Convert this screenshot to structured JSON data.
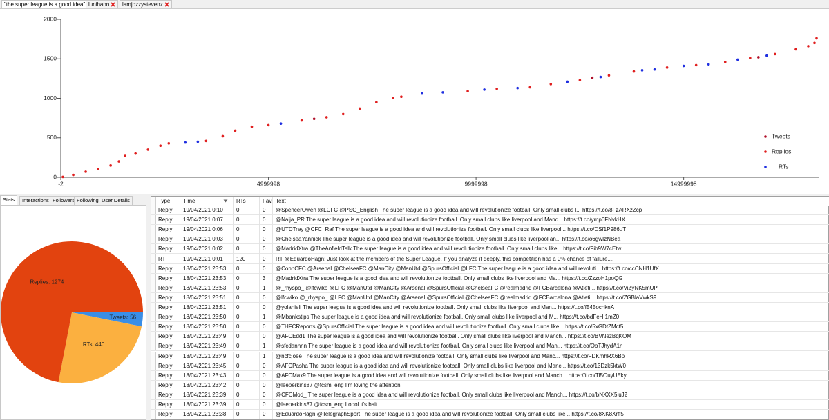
{
  "window_tabs": [
    "\"the super league is a good idea\"",
    "lunihann",
    "lamjozzystevenz"
  ],
  "chart_data": [
    {
      "type": "scatter",
      "xlim": [
        -2,
        18250000
      ],
      "ylim": [
        0,
        2000
      ],
      "xticks": [
        -2,
        4999998,
        9999998,
        14999998
      ],
      "yticks": [
        0,
        500,
        1000,
        1500,
        2000
      ],
      "legend": "right",
      "series": [
        {
          "name": "Tweets",
          "color": "#b0102a",
          "x": [
            6100000,
            12800000,
            16800000
          ],
          "values": [
            740,
            1260,
            1520
          ]
        },
        {
          "name": "Replies",
          "color": "#e01f1f",
          "x": [
            50000,
            300000,
            600000,
            900000,
            1200000,
            1400000,
            1550000,
            1800000,
            2100000,
            2400000,
            2600000,
            3500000,
            3900000,
            4200000,
            4600000,
            5000000,
            5800000,
            6400000,
            6800000,
            7200000,
            7600000,
            8000000,
            8200000,
            9800000,
            10500000,
            11300000,
            11800000,
            12500000,
            13200000,
            13800000,
            14600000,
            15300000,
            16000000,
            16600000,
            17200000,
            17700000,
            18000000,
            18150000,
            18200000
          ],
          "values": [
            5,
            30,
            70,
            105,
            150,
            200,
            270,
            300,
            350,
            400,
            430,
            460,
            520,
            590,
            640,
            660,
            720,
            760,
            800,
            870,
            950,
            1005,
            1020,
            1090,
            1120,
            1140,
            1180,
            1230,
            1290,
            1340,
            1390,
            1420,
            1460,
            1510,
            1560,
            1620,
            1660,
            1700,
            1760
          ]
        },
        {
          "name": "RTs",
          "color": "#1f2fe0",
          "x": [
            3000000,
            3300000,
            5300000,
            8700000,
            9200000,
            10200000,
            11000000,
            12200000,
            13000000,
            14000000,
            14300000,
            15000000,
            15600000,
            16300000,
            17000000
          ],
          "values": [
            440,
            450,
            680,
            1060,
            1075,
            1110,
            1130,
            1210,
            1270,
            1355,
            1365,
            1410,
            1430,
            1490,
            1540
          ]
        }
      ]
    },
    {
      "type": "pie",
      "categories": [
        "Tweets",
        "RTs",
        "Replies"
      ],
      "values": [
        56,
        440,
        1274
      ],
      "value_labels": [
        "Tweets: 56",
        "RTs: 440",
        "Replies: 1274"
      ],
      "colors": [
        "#3a8ee6",
        "#fbb040",
        "#e2430f"
      ]
    }
  ],
  "side_tabs": [
    "Stats",
    "Interactions",
    "Followers",
    "Following",
    "User Details"
  ],
  "table": {
    "columns": [
      "Type",
      "Time",
      "RTs",
      "Favs",
      "Text"
    ],
    "rows": [
      [
        "Reply",
        "19/04/2021 0:10",
        0,
        0,
        "@SpencerOwen @LCFC @PSG_English The super league is a good idea and will revolutionize football. Only small clubs l... https://t.co/8FzARXzZcp"
      ],
      [
        "Reply",
        "19/04/2021 0:07",
        0,
        0,
        "@Naija_PR The super league is a good idea and will revolutionize football. Only small clubs like liverpool and Manc... https://t.co/ymp6FNvkHX"
      ],
      [
        "Reply",
        "19/04/2021 0:06",
        0,
        0,
        "@UTDTrey @CFC_Raf The super league is a good idea and will revolutionize football. Only small clubs like liverpool... https://t.co/DSf1P986uT"
      ],
      [
        "Reply",
        "19/04/2021 0:03",
        0,
        0,
        "@ChelseaYannick The super league is a good idea and will revolutionize football. Only small clubs like liverpool an... https://t.co/o6gwIzNBea"
      ],
      [
        "Reply",
        "19/04/2021 0:02",
        0,
        0,
        "@MadridXtra @TheAnfieldTalk The super league is a good idea and will revolutionize football. Only small clubs like... https://t.co/Fib9W7cEtw"
      ],
      [
        "RT",
        "19/04/2021 0:01",
        120,
        0,
        "RT @EduardoHagn: Just look at the members of the Super League. If you analyze it deeply, this competition has a 0% chance of failure...."
      ],
      [
        "Reply",
        "18/04/2021 23:53",
        0,
        0,
        "@ConnCFC @Arsenal @ChelseaFC @ManCity @ManUtd @SpursOfficial @LFC The super league is a good idea and will revoluti... https://t.co/ccCNH1UfX"
      ],
      [
        "Reply",
        "18/04/2021 23:53",
        0,
        3,
        "@MadridXtra The super league is a good idea and will revolutionize football. Only small clubs like liverpool and Ma... https://t.co/ZzzoH1poQG"
      ],
      [
        "Reply",
        "18/04/2021 23:53",
        0,
        1,
        "@_rhyspo_ @lfcwiko @LFC @ManUtd @ManCity @Arsenal @SpursOfficial @ChelseaFC @realmadrid @FCBarcelona @Atleti... https://t.co/ViZyNK5mUP"
      ],
      [
        "Reply",
        "18/04/2021 23:51",
        0,
        0,
        "@lfcwiko @_rhyspo_ @LFC @ManUtd @ManCity @Arsenal @SpursOfficial @ChelseaFC @realmadrid @FCBarcelona @Atleti... https://t.co/ZGBlaVwkS9"
      ],
      [
        "Reply",
        "18/04/2021 23:51",
        0,
        0,
        "@yolanieli The super league is a good idea and will revolutionize football. Only small clubs like liverpool and Man... https://t.co/f545ocnknA"
      ],
      [
        "Reply",
        "18/04/2021 23:50",
        0,
        1,
        "@Mbankstips The super league is a good idea and will revolutionize football. Only small clubs like liverpool and M... https://t.co/bdFeHI1mZ0"
      ],
      [
        "Reply",
        "18/04/2021 23:50",
        0,
        0,
        "@THFCReports @SpursOfficial The super league is a good idea and will revolutionize football. Only small clubs like... https://t.co/5xGDtZMct5"
      ],
      [
        "Reply",
        "18/04/2021 23:49",
        0,
        0,
        "@AFCEdd1 The super league is a good idea and will revolutionize football. Only small clubs like liverpool and Manch... https://t.co/BVNezBqKOM"
      ],
      [
        "Reply",
        "18/04/2021 23:49",
        0,
        1,
        "@sfcdannnn The super league is a good idea and will revolutionize football. Only small clubs like liverpool and Man... https://t.co/OoTJhydA1n"
      ],
      [
        "Reply",
        "18/04/2021 23:49",
        0,
        1,
        "@ncfcjoee The super league is a good idea and will revolutionize football. Only small clubs like liverpool and Manc... https://t.co/FDKmhRX6Bp"
      ],
      [
        "Reply",
        "18/04/2021 23:45",
        0,
        0,
        "@AFCPasha The super league is a good idea and will revolutionize football. Only small clubs like liverpool and Manc... https://t.co/13Dzk5ktW0"
      ],
      [
        "Reply",
        "18/04/2021 23:43",
        0,
        0,
        "@AFCMax9 The super league is a good idea and will revolutionize football. Only small clubs like liverpool and Manch... https://t.co/Tl5OuyUEky"
      ],
      [
        "Reply",
        "18/04/2021 23:42",
        0,
        0,
        "@leeperkins87 @fcsm_eng I'm loving the attention"
      ],
      [
        "Reply",
        "18/04/2021 23:39",
        0,
        0,
        "@CFCMod_ The super league is a good idea and will revolutionize football. Only small clubs like liverpool and Manch... https://t.co/bNXXX5luJ2"
      ],
      [
        "Reply",
        "18/04/2021 23:39",
        0,
        0,
        "@leeperkins87 @fcsm_eng Loool it's bait"
      ],
      [
        "Reply",
        "18/04/2021 23:38",
        0,
        0,
        "@EduardoHagn @TelegraphSport The super league is a good idea and will revolutionize football. Only small clubs like... https://t.co/8XK8Xrff5"
      ]
    ]
  }
}
